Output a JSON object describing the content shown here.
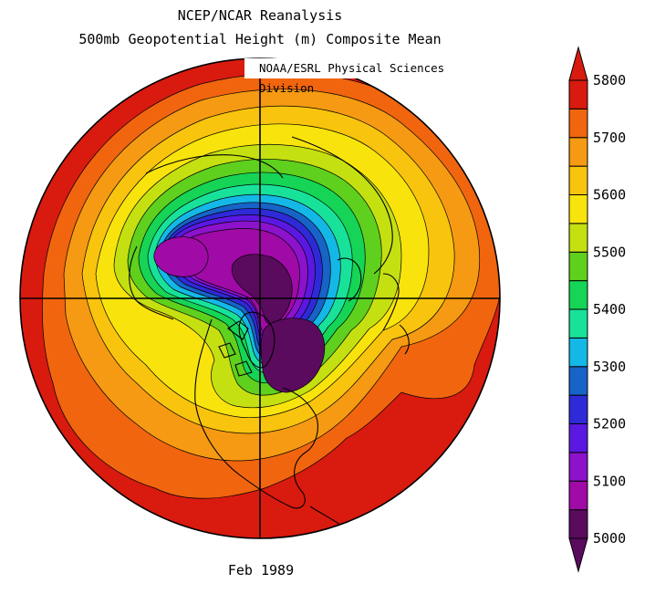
{
  "title_line1": "NCEP/NCAR Reanalysis",
  "title_line2": "500mb Geopotential Height (m) Composite Mean",
  "credit": "NOAA/ESRL Physical Sciences Division",
  "date_label": "Feb 1989",
  "colorbar": {
    "colors": [
      "#5a0b5e",
      "#a00aa6",
      "#8c12cc",
      "#5b18e2",
      "#2e2ad8",
      "#1763c8",
      "#14b8e6",
      "#18e29a",
      "#16d455",
      "#5fd01d",
      "#c5e011",
      "#f8e40c",
      "#f8c40d",
      "#f59a12",
      "#f1650e",
      "#d91a0f"
    ],
    "tick_labels": [
      "5000",
      "5100",
      "5200",
      "5300",
      "5400",
      "5500",
      "5600",
      "5700",
      "5800"
    ],
    "tick_values": [
      5000,
      5100,
      5200,
      5300,
      5400,
      5500,
      5600,
      5700,
      5800
    ]
  }
}
